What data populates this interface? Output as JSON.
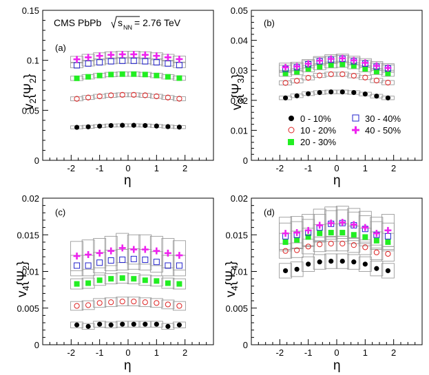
{
  "chart_data": [
    {
      "type": "scatter",
      "panel_label": "(a)",
      "ylabel": "v2{Ψ2}",
      "xlabel": "η",
      "xlim": [
        -3,
        3
      ],
      "ylim": [
        0,
        0.15
      ],
      "xticks": [
        "-2",
        "-1",
        "0",
        "1",
        "2"
      ],
      "yticks": [
        "0",
        "0.05",
        "0.1",
        "0.15"
      ],
      "annotation_prefix": "CMS PbPb",
      "annotation_energy": "√s_NN = 2.76 TeV",
      "annotation_value": "= 2.76 TeV",
      "x": [
        -1.8,
        -1.4,
        -1.0,
        -0.6,
        -0.2,
        0.2,
        0.6,
        1.0,
        1.4,
        1.8
      ],
      "series": [
        {
          "name": "0 - 10%",
          "values": [
            0.033,
            0.0335,
            0.0342,
            0.0348,
            0.035,
            0.035,
            0.0348,
            0.0343,
            0.0337,
            0.0332
          ],
          "syst": [
            0.0015,
            0.0015,
            0.0015,
            0.0015,
            0.0015,
            0.0015,
            0.0015,
            0.0015,
            0.0015,
            0.0015
          ]
        },
        {
          "name": "10 - 20%",
          "values": [
            0.0615,
            0.0628,
            0.064,
            0.065,
            0.0655,
            0.0655,
            0.065,
            0.064,
            0.0628,
            0.0616
          ],
          "syst": [
            0.002,
            0.002,
            0.002,
            0.002,
            0.002,
            0.002,
            0.002,
            0.002,
            0.002,
            0.002
          ]
        },
        {
          "name": "20 - 30%",
          "values": [
            0.082,
            0.0835,
            0.0848,
            0.0858,
            0.0862,
            0.0862,
            0.0858,
            0.0848,
            0.0835,
            0.0822
          ],
          "syst": [
            0.0022,
            0.0022,
            0.0022,
            0.0022,
            0.0022,
            0.0022,
            0.0022,
            0.0022,
            0.0022,
            0.0022
          ]
        },
        {
          "name": "30 - 40%",
          "values": [
            0.095,
            0.0968,
            0.098,
            0.099,
            0.0995,
            0.0995,
            0.099,
            0.098,
            0.0968,
            0.0952
          ],
          "syst": [
            0.0025,
            0.0025,
            0.0025,
            0.0025,
            0.0025,
            0.0025,
            0.0025,
            0.0025,
            0.0025,
            0.0025
          ]
        },
        {
          "name": "40 - 50%",
          "values": [
            0.101,
            0.103,
            0.1045,
            0.1055,
            0.106,
            0.106,
            0.1055,
            0.1045,
            0.103,
            0.1012
          ],
          "syst": [
            0.003,
            0.003,
            0.003,
            0.003,
            0.003,
            0.003,
            0.003,
            0.003,
            0.003,
            0.003
          ]
        }
      ]
    },
    {
      "type": "scatter",
      "panel_label": "(b)",
      "ylabel": "v3{Ψ3}",
      "xlabel": "η",
      "xlim": [
        -3,
        3
      ],
      "ylim": [
        0,
        0.05
      ],
      "xticks": [
        "-2",
        "-1",
        "0",
        "1",
        "2"
      ],
      "yticks": [
        "0",
        "0.01",
        "0.02",
        "0.03",
        "0.04",
        "0.05"
      ],
      "x": [
        -1.8,
        -1.4,
        -1.0,
        -0.6,
        -0.2,
        0.2,
        0.6,
        1.0,
        1.4,
        1.8
      ],
      "series": [
        {
          "name": "0 - 10%",
          "values": [
            0.0208,
            0.0215,
            0.0222,
            0.0226,
            0.0228,
            0.0228,
            0.0226,
            0.0221,
            0.0214,
            0.0208
          ],
          "syst": [
            0.0006,
            0.0006,
            0.0006,
            0.0006,
            0.0006,
            0.0006,
            0.0006,
            0.0006,
            0.0006,
            0.0006
          ]
        },
        {
          "name": "10 - 20%",
          "values": [
            0.0258,
            0.0265,
            0.0275,
            0.0283,
            0.0287,
            0.0287,
            0.0282,
            0.0276,
            0.0266,
            0.0259
          ],
          "syst": [
            0.0007,
            0.0007,
            0.0007,
            0.0007,
            0.0007,
            0.0007,
            0.0007,
            0.0007,
            0.0007,
            0.0007
          ]
        },
        {
          "name": "20 - 30%",
          "values": [
            0.029,
            0.0295,
            0.0305,
            0.0312,
            0.0318,
            0.032,
            0.0315,
            0.0305,
            0.0296,
            0.029
          ],
          "syst": [
            0.001,
            0.001,
            0.001,
            0.001,
            0.001,
            0.001,
            0.001,
            0.001,
            0.001,
            0.001
          ]
        },
        {
          "name": "30 - 40%",
          "values": [
            0.0305,
            0.031,
            0.032,
            0.033,
            0.0335,
            0.0338,
            0.033,
            0.0322,
            0.0312,
            0.0306
          ],
          "syst": [
            0.0012,
            0.0012,
            0.0012,
            0.0012,
            0.0012,
            0.0012,
            0.0012,
            0.0012,
            0.0012,
            0.0012
          ]
        },
        {
          "name": "40 - 50%",
          "values": [
            0.031,
            0.0313,
            0.0322,
            0.0332,
            0.0338,
            0.034,
            0.0333,
            0.0325,
            0.0315,
            0.0308
          ],
          "syst": [
            0.0014,
            0.0014,
            0.0014,
            0.0014,
            0.0014,
            0.0014,
            0.0014,
            0.0014,
            0.0014,
            0.0014
          ]
        }
      ]
    },
    {
      "type": "scatter",
      "panel_label": "(c)",
      "ylabel": "v4{Ψ2}",
      "xlabel": "η",
      "xlim": [
        -3,
        3
      ],
      "ylim": [
        0,
        0.02
      ],
      "xticks": [
        "-2",
        "-1",
        "0",
        "1",
        "2"
      ],
      "yticks": [
        "0",
        "0.005",
        "0.01",
        "0.015",
        "0.02"
      ],
      "x": [
        -1.8,
        -1.4,
        -1.0,
        -0.6,
        -0.2,
        0.2,
        0.6,
        1.0,
        1.4,
        1.8
      ],
      "series": [
        {
          "name": "0 - 10%",
          "values": [
            0.0027,
            0.0025,
            0.0028,
            0.0027,
            0.0028,
            0.0028,
            0.0028,
            0.0028,
            0.0025,
            0.0027
          ],
          "syst": [
            0.0004,
            0.0004,
            0.0004,
            0.0004,
            0.0004,
            0.0004,
            0.0004,
            0.0004,
            0.0004,
            0.0004
          ]
        },
        {
          "name": "10 - 20%",
          "values": [
            0.0053,
            0.0054,
            0.0057,
            0.0058,
            0.0059,
            0.0059,
            0.0058,
            0.0057,
            0.0055,
            0.0053
          ],
          "syst": [
            0.0006,
            0.0006,
            0.0006,
            0.0006,
            0.0006,
            0.0006,
            0.0006,
            0.0006,
            0.0006,
            0.0006
          ]
        },
        {
          "name": "20 - 30%",
          "values": [
            0.0083,
            0.0084,
            0.0088,
            0.009,
            0.0091,
            0.009,
            0.0088,
            0.0087,
            0.0084,
            0.0083
          ],
          "syst": [
            0.0007,
            0.0007,
            0.0007,
            0.0007,
            0.0007,
            0.0007,
            0.0007,
            0.0007,
            0.0007,
            0.0007
          ]
        },
        {
          "name": "30 - 40%",
          "values": [
            0.0108,
            0.0108,
            0.0112,
            0.0115,
            0.0116,
            0.0117,
            0.0116,
            0.0113,
            0.0108,
            0.0108
          ],
          "syst": [
            0.0014,
            0.0014,
            0.0014,
            0.0014,
            0.0014,
            0.0014,
            0.0014,
            0.0014,
            0.0014,
            0.0014
          ]
        },
        {
          "name": "40 - 50%",
          "values": [
            0.0121,
            0.0123,
            0.0125,
            0.0128,
            0.0132,
            0.013,
            0.013,
            0.0128,
            0.0125,
            0.0122
          ],
          "syst": [
            0.002,
            0.002,
            0.002,
            0.002,
            0.002,
            0.002,
            0.002,
            0.002,
            0.002,
            0.002
          ]
        }
      ]
    },
    {
      "type": "scatter",
      "panel_label": "(d)",
      "ylabel": "v4{Ψ4}",
      "xlabel": "η",
      "xlim": [
        -3,
        3
      ],
      "ylim": [
        0,
        0.02
      ],
      "xticks": [
        "-2",
        "-1",
        "0",
        "1",
        "2"
      ],
      "yticks": [
        "0",
        "0.005",
        "0.01",
        "0.015",
        "0.02"
      ],
      "x": [
        -1.8,
        -1.4,
        -1.0,
        -0.6,
        -0.2,
        0.2,
        0.6,
        1.0,
        1.4,
        1.8
      ],
      "series": [
        {
          "name": "0 - 10%",
          "values": [
            0.0101,
            0.0103,
            0.011,
            0.0113,
            0.0114,
            0.0114,
            0.0113,
            0.011,
            0.0104,
            0.0101
          ],
          "syst": [
            0.001,
            0.001,
            0.001,
            0.001,
            0.001,
            0.001,
            0.001,
            0.001,
            0.001,
            0.001
          ]
        },
        {
          "name": "10 - 20%",
          "values": [
            0.0128,
            0.0129,
            0.0134,
            0.0137,
            0.0138,
            0.0138,
            0.0136,
            0.0133,
            0.0126,
            0.0124
          ],
          "syst": [
            0.001,
            0.001,
            0.001,
            0.001,
            0.001,
            0.001,
            0.001,
            0.001,
            0.001,
            0.001
          ]
        },
        {
          "name": "20 - 30%",
          "values": [
            0.014,
            0.0143,
            0.0147,
            0.0152,
            0.0153,
            0.0153,
            0.015,
            0.0147,
            0.0142,
            0.014
          ],
          "syst": [
            0.0012,
            0.0012,
            0.0012,
            0.0012,
            0.0012,
            0.0012,
            0.0012,
            0.0012,
            0.0012,
            0.0012
          ]
        },
        {
          "name": "30 - 40%",
          "values": [
            0.0148,
            0.015,
            0.0153,
            0.016,
            0.0165,
            0.0166,
            0.0163,
            0.0158,
            0.015,
            0.0148
          ],
          "syst": [
            0.0018,
            0.0018,
            0.0018,
            0.0018,
            0.0018,
            0.0018,
            0.0018,
            0.0018,
            0.0018,
            0.0018
          ]
        },
        {
          "name": "40 - 50%",
          "values": [
            0.0152,
            0.0153,
            0.0156,
            0.0163,
            0.0166,
            0.0167,
            0.0164,
            0.016,
            0.0152,
            0.0156
          ],
          "syst": [
            0.0022,
            0.0022,
            0.0022,
            0.0022,
            0.0022,
            0.0022,
            0.0022,
            0.0022,
            0.0022,
            0.0022
          ]
        }
      ]
    }
  ],
  "legend": {
    "entries": [
      "0 - 10%",
      "10 - 20%",
      "20 - 30%",
      "30 - 40%",
      "40 - 50%"
    ],
    "placement": "panel-b-lower-half"
  },
  "colors": {
    "c0": "#000000",
    "c1": "#dd2020",
    "c2": "#22ee22",
    "c3": "#2222cc",
    "c4": "#ee22ee",
    "syst": "#9a9a9a"
  }
}
